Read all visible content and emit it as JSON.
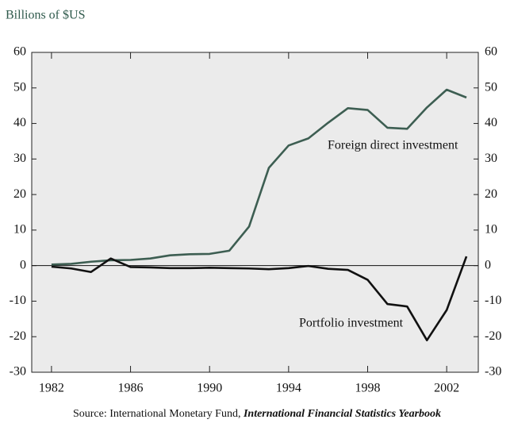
{
  "chart_data": {
    "type": "line",
    "y_label": "Billions of $US",
    "source": "Source:  International Monetary Fund, ",
    "source_title": "International Financial Statistics Yearbook",
    "x": [
      1982,
      1983,
      1984,
      1985,
      1986,
      1987,
      1988,
      1989,
      1990,
      1991,
      1992,
      1993,
      1994,
      1995,
      1996,
      1997,
      1998,
      1999,
      2000,
      2001,
      2002,
      2003
    ],
    "series": [
      {
        "name": "Foreign direct investment",
        "color": "#3d5e52",
        "values": [
          0.3,
          0.5,
          1.1,
          1.5,
          1.6,
          2.0,
          2.9,
          3.2,
          3.3,
          4.2,
          11,
          27.5,
          33.8,
          35.8,
          40.2,
          44.3,
          43.8,
          38.8,
          38.5,
          44.5,
          49.5,
          47.3
        ]
      },
      {
        "name": "Portfolio investment",
        "color": "#111111",
        "values": [
          -0.3,
          -0.8,
          -1.8,
          2.0,
          -0.4,
          -0.5,
          -0.7,
          -0.7,
          -0.6,
          -0.7,
          -0.8,
          -1.0,
          -0.7,
          -0.1,
          -0.9,
          -1.2,
          -4.0,
          -10.8,
          -11.5,
          -21,
          -12.5,
          2.6
        ]
      }
    ],
    "xlim": [
      1981.0,
      2003.6
    ],
    "xticks": [
      1982,
      1986,
      1990,
      1994,
      1998,
      2002
    ],
    "ylim": [
      -30,
      60
    ],
    "yticks": [
      -30,
      -20,
      -10,
      0,
      10,
      20,
      30,
      40,
      50,
      60
    ],
    "y2lim": [
      -30,
      60
    ],
    "y2ticks": [
      -30,
      -20,
      -10,
      0,
      10,
      20,
      30,
      40,
      50,
      60
    ]
  }
}
